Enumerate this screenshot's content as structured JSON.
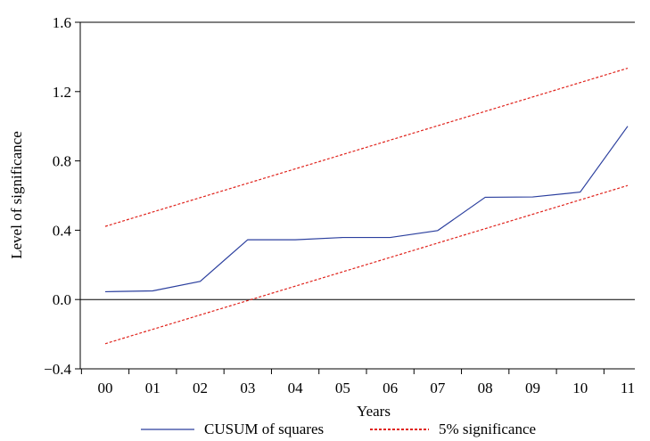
{
  "chart_data": {
    "type": "line",
    "title": "",
    "xlabel": "Years",
    "ylabel": "Level of significance",
    "categories": [
      "00",
      "01",
      "02",
      "03",
      "04",
      "05",
      "06",
      "07",
      "08",
      "09",
      "10",
      "11"
    ],
    "ylim": [
      -0.4,
      1.6
    ],
    "yticks": [
      "1.6",
      "1.2",
      "0.8",
      "0.4",
      "0.0",
      "−0.4"
    ],
    "ytick_values": [
      1.6,
      1.2,
      0.8,
      0.4,
      0.0,
      -0.4
    ],
    "zero_line": true,
    "grid": false,
    "legend_position": "bottom",
    "series": [
      {
        "name": "CUSUM of squares",
        "style": "solid",
        "color": "#2b3f9e",
        "values": [
          0.045,
          0.05,
          0.105,
          0.345,
          0.345,
          0.358,
          0.358,
          0.398,
          0.59,
          0.592,
          0.62,
          1.0
        ]
      },
      {
        "name": "5% significance",
        "style": "dotted",
        "color": "#e0231c",
        "values": [
          0.422,
          0.505,
          0.588,
          0.671,
          0.754,
          0.837,
          0.92,
          1.003,
          1.086,
          1.169,
          1.252,
          1.335
        ]
      },
      {
        "name": "",
        "style": "dotted",
        "color": "#e0231c",
        "values": [
          -0.255,
          -0.172,
          -0.089,
          -0.006,
          0.077,
          0.16,
          0.243,
          0.326,
          0.409,
          0.492,
          0.575,
          0.658
        ]
      }
    ]
  }
}
